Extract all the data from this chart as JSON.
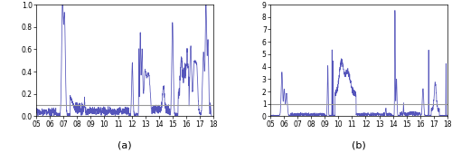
{
  "xlim": [
    2005,
    2018
  ],
  "xticklabels": [
    "05",
    "06",
    "07",
    "08",
    "09",
    "10",
    "11",
    "12",
    "13",
    "14",
    "15",
    "16",
    "17",
    "18"
  ],
  "ylim_a": [
    0.0,
    1.0
  ],
  "yticks_a": [
    0.0,
    0.2,
    0.4,
    0.6,
    0.8,
    1.0
  ],
  "yticklabels_a": [
    "0.0",
    "0.2",
    "0.4",
    "0.6",
    "0.8",
    "1.0"
  ],
  "ylim_b": [
    0.0,
    9.0
  ],
  "yticks_b": [
    0,
    1,
    2,
    3,
    4,
    5,
    6,
    7,
    8,
    9
  ],
  "yticklabels_b": [
    "0",
    "1",
    "2",
    "3",
    "4",
    "5",
    "6",
    "7",
    "8",
    "9"
  ],
  "hline_val_a": 0.1,
  "hline_val_b": 1.0,
  "line_color": "#5555bb",
  "hline_color": "#999999",
  "label_a": "(a)",
  "label_b": "(b)",
  "fig_width": 5.0,
  "fig_height": 1.69,
  "dpi": 100
}
